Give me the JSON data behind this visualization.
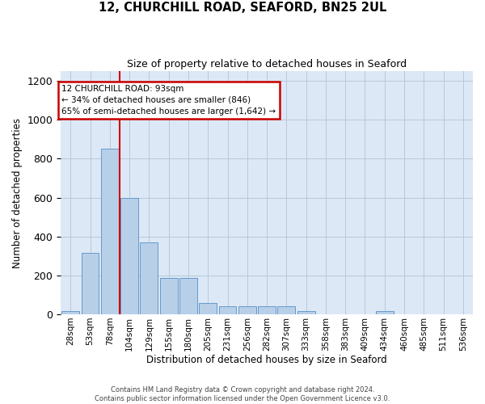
{
  "title": "12, CHURCHILL ROAD, SEAFORD, BN25 2UL",
  "subtitle": "Size of property relative to detached houses in Seaford",
  "xlabel": "Distribution of detached houses by size in Seaford",
  "ylabel": "Number of detached properties",
  "categories": [
    "28sqm",
    "53sqm",
    "78sqm",
    "104sqm",
    "129sqm",
    "155sqm",
    "180sqm",
    "205sqm",
    "231sqm",
    "256sqm",
    "282sqm",
    "307sqm",
    "333sqm",
    "358sqm",
    "383sqm",
    "409sqm",
    "434sqm",
    "460sqm",
    "485sqm",
    "511sqm",
    "536sqm"
  ],
  "values": [
    15,
    315,
    850,
    600,
    370,
    185,
    185,
    60,
    40,
    40,
    40,
    40,
    15,
    0,
    0,
    0,
    15,
    0,
    0,
    0,
    0
  ],
  "bar_color": "#b8cfe8",
  "bar_edge_color": "#6699cc",
  "annotation_text": "12 CHURCHILL ROAD: 93sqm\n← 34% of detached houses are smaller (846)\n65% of semi-detached houses are larger (1,642) →",
  "annotation_box_facecolor": "#ffffff",
  "annotation_box_edgecolor": "#cc0000",
  "vline_color": "#cc0000",
  "vline_x": 2.5,
  "bg_color": "#dce8f5",
  "ylim": [
    0,
    1250
  ],
  "yticks": [
    0,
    200,
    400,
    600,
    800,
    1000,
    1200
  ],
  "footer_line1": "Contains HM Land Registry data © Crown copyright and database right 2024.",
  "footer_line2": "Contains public sector information licensed under the Open Government Licence v3.0."
}
